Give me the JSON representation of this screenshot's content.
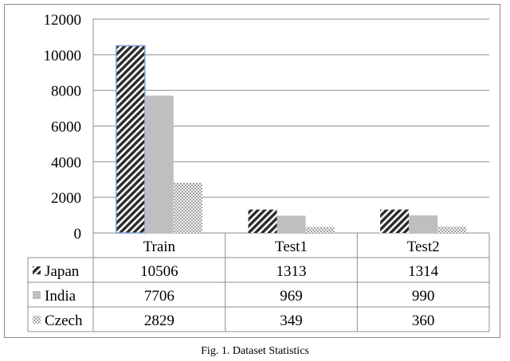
{
  "caption": "Fig. 1. Dataset Statistics",
  "chart_data": {
    "type": "bar",
    "categories": [
      "Train",
      "Test1",
      "Test2"
    ],
    "series": [
      {
        "name": "Japan",
        "values": [
          10506,
          1313,
          1314
        ],
        "pattern": "diagonal-hatch",
        "color": "#2b2b2b"
      },
      {
        "name": "India",
        "values": [
          7706,
          969,
          990
        ],
        "pattern": "solid",
        "color": "#bfbfbf"
      },
      {
        "name": "Czech",
        "values": [
          2829,
          349,
          360
        ],
        "pattern": "dots",
        "color": "#5a5a5a"
      }
    ],
    "yticks": [
      "0",
      "2000",
      "4000",
      "6000",
      "8000",
      "10000",
      "12000"
    ],
    "ylim": [
      0,
      12000
    ],
    "grid": true,
    "legend": "data-table-left",
    "selected_bar": {
      "series": "Japan",
      "category": "Train"
    }
  }
}
